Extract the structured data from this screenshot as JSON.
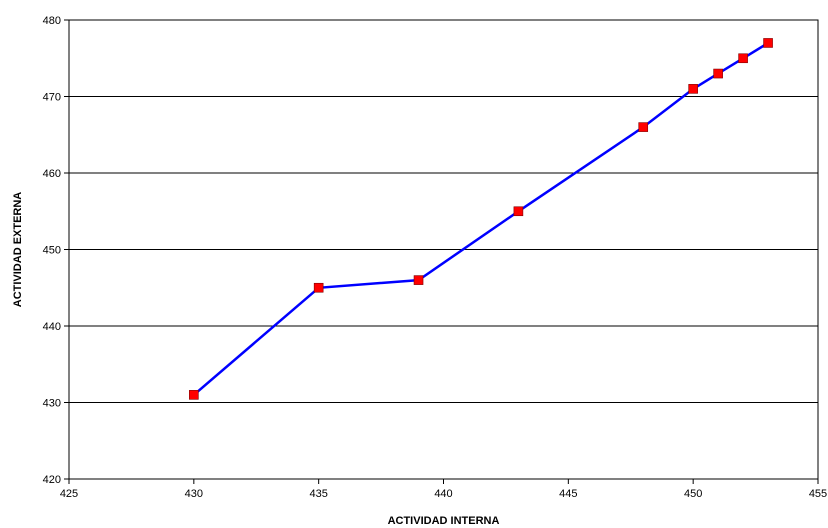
{
  "chart_data": {
    "type": "line",
    "title": "",
    "xlabel": "ACTIVIDAD INTERNA",
    "ylabel": "ACTIVIDAD EXTERNA",
    "xlim": [
      425,
      455
    ],
    "ylim": [
      420,
      480
    ],
    "xticks": [
      425,
      430,
      435,
      440,
      445,
      450,
      455
    ],
    "yticks": [
      420,
      430,
      440,
      450,
      460,
      470,
      480
    ],
    "grid": "horizontal",
    "line_color": "#0000ff",
    "marker_color": "#ff0000",
    "series": [
      {
        "x": [
          430,
          435,
          439,
          443,
          448,
          450,
          451,
          452,
          453
        ],
        "y": [
          431,
          445,
          446,
          455,
          466,
          471,
          473,
          475,
          477
        ]
      }
    ]
  }
}
